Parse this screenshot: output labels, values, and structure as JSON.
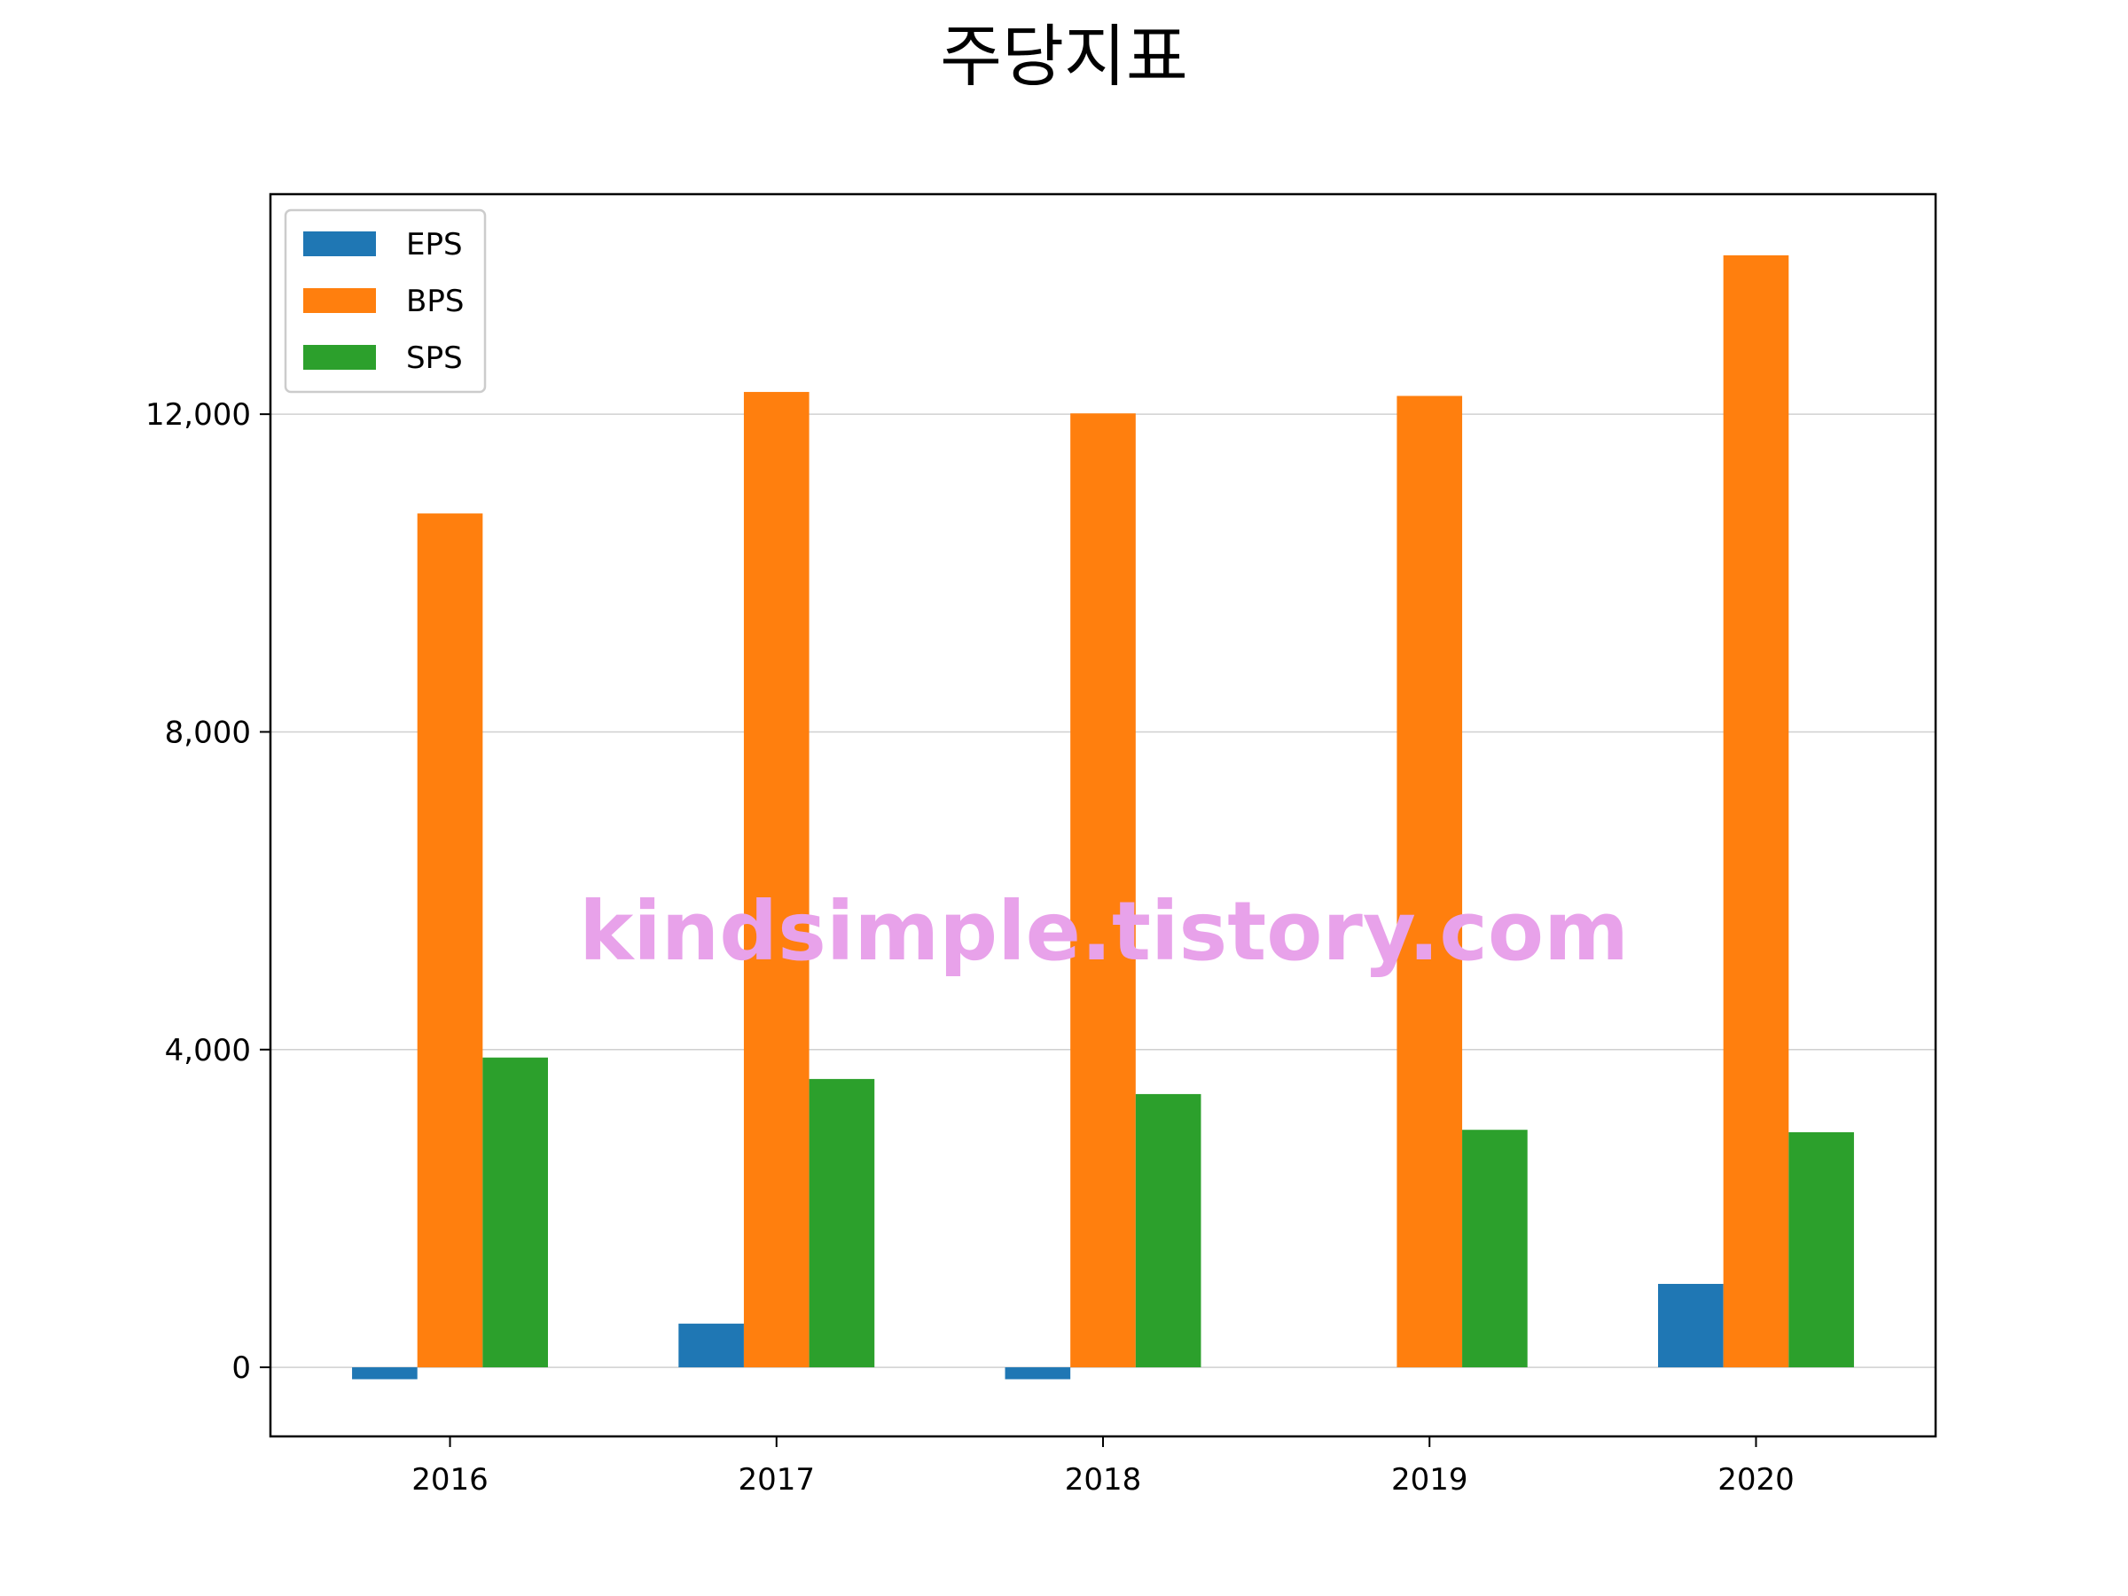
{
  "chart_data": {
    "type": "bar",
    "title": "주당지표",
    "xlabel": "",
    "ylabel": "",
    "categories": [
      "2016",
      "2017",
      "2018",
      "2019",
      "2020"
    ],
    "series": [
      {
        "name": "EPS",
        "color": "#1f77b4",
        "values": [
          -150,
          550,
          -150,
          0,
          1050
        ]
      },
      {
        "name": "BPS",
        "color": "#ff7f0e",
        "values": [
          10750,
          12280,
          12010,
          12230,
          14000
        ]
      },
      {
        "name": "SPS",
        "color": "#2ca02c",
        "values": [
          3900,
          3630,
          3440,
          2990,
          2960
        ]
      }
    ],
    "ylim": [
      -870,
      14770
    ],
    "yticks": [
      0,
      4000,
      8000,
      12000
    ],
    "ytick_labels": [
      "0",
      "4,000",
      "8,000",
      "12,000"
    ],
    "grid": "horizontal",
    "legend_position": "top-left",
    "watermark": "kindsimple.tistory.com",
    "watermark_color": "#e8a2ea"
  }
}
